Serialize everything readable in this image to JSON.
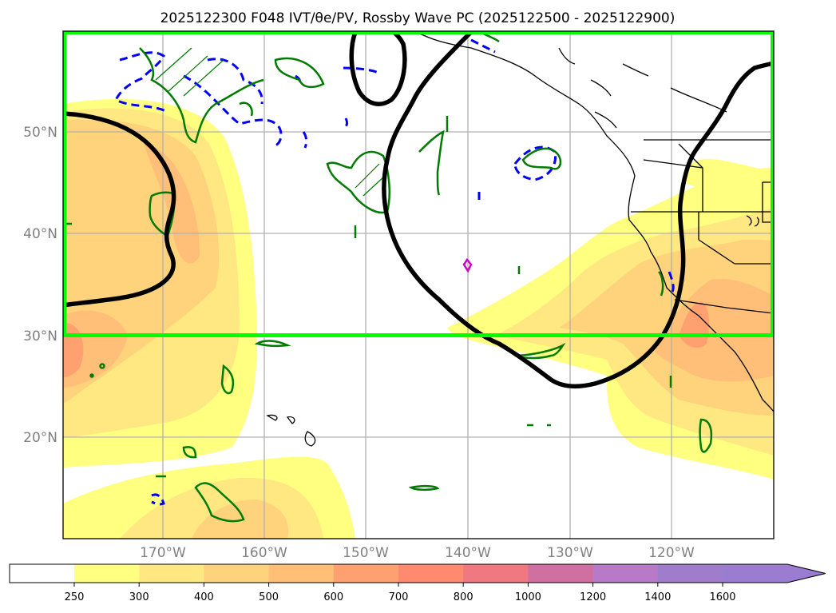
{
  "title": "2025122300 F048 IVT/θe/PV, Rossby Wave PC (2025122500 - 2025122900)",
  "map": {
    "lat_labels": [
      "50°N",
      "40°N",
      "30°N",
      "20°N"
    ],
    "lon_labels": [
      "170°W",
      "160°W",
      "150°W",
      "140°W",
      "130°W",
      "120°W"
    ],
    "extent": {
      "lon": [
        -180,
        -110
      ],
      "lat": [
        10,
        60
      ]
    },
    "gridlines": true,
    "box": {
      "lon": [
        -180,
        -110
      ],
      "lat": [
        30,
        60
      ],
      "color": "#00ff00"
    }
  },
  "colorbar": {
    "ticks": [
      "250",
      "300",
      "400",
      "500",
      "600",
      "700",
      "800",
      "1000",
      "1200",
      "1400",
      "1600"
    ],
    "colors": [
      "#ffff80",
      "#ffe882",
      "#ffd27c",
      "#ffbf78",
      "#ffa070",
      "#ff8a70",
      "#f07880",
      "#d070a0",
      "#b87ac8",
      "#a07ccc",
      "#9a7cd0"
    ],
    "extend": "max"
  },
  "colors": {
    "pv_contour": "#007a00",
    "theta_contour": "#0000ff",
    "rossby_contour": "#000000",
    "magenta_feature": "#cc00cc"
  }
}
